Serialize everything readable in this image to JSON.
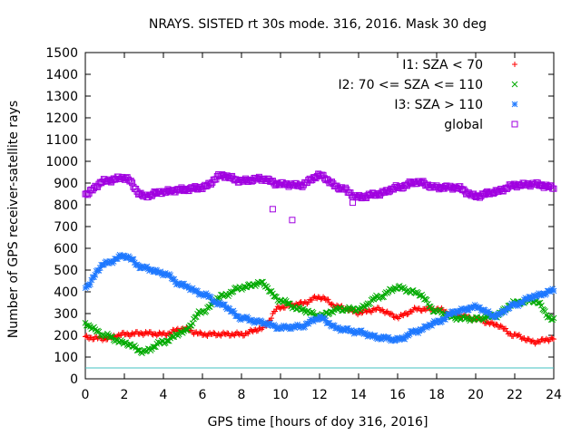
{
  "chart_data": {
    "type": "scatter",
    "title": "NRAYS. SISTED rt 30s mode. 316, 2016. Mask 30 deg",
    "xlabel": "GPS time [hours of doy 316, 2016]",
    "ylabel": "Number of GPS receiver-satellite rays",
    "xlim": [
      0,
      24
    ],
    "ylim": [
      0,
      1500
    ],
    "xticks": [
      "0",
      "2",
      "4",
      "6",
      "8",
      "10",
      "12",
      "14",
      "16",
      "18",
      "20",
      "22",
      "24"
    ],
    "yticks": [
      "0",
      "100",
      "200",
      "300",
      "400",
      "500",
      "600",
      "700",
      "800",
      "900",
      "1000",
      "1100",
      "1200",
      "1300",
      "1400",
      "1500"
    ],
    "legend_position": "top-right",
    "series": [
      {
        "name": "I1: SZA < 70",
        "color": "#ff0000",
        "marker": "plus",
        "points": [
          [
            0,
            190
          ],
          [
            1,
            185
          ],
          [
            2,
            205
          ],
          [
            3,
            210
          ],
          [
            4,
            205
          ],
          [
            5,
            230
          ],
          [
            6,
            205
          ],
          [
            7,
            205
          ],
          [
            8,
            205
          ],
          [
            9,
            230
          ],
          [
            10,
            330
          ],
          [
            11,
            345
          ],
          [
            12,
            375
          ],
          [
            13,
            330
          ],
          [
            14,
            305
          ],
          [
            15,
            320
          ],
          [
            16,
            285
          ],
          [
            17,
            320
          ],
          [
            18,
            320
          ],
          [
            19,
            295
          ],
          [
            20,
            275
          ],
          [
            21,
            250
          ],
          [
            22,
            200
          ],
          [
            23,
            170
          ],
          [
            24,
            185
          ]
        ]
      },
      {
        "name": "I2: 70 <= SZA <= 110",
        "color": "#00aa00",
        "marker": "cross",
        "points": [
          [
            0,
            250
          ],
          [
            1,
            200
          ],
          [
            2,
            165
          ],
          [
            3,
            125
          ],
          [
            4,
            170
          ],
          [
            5,
            215
          ],
          [
            6,
            310
          ],
          [
            7,
            380
          ],
          [
            8,
            420
          ],
          [
            9,
            440
          ],
          [
            10,
            360
          ],
          [
            11,
            320
          ],
          [
            12,
            290
          ],
          [
            13,
            320
          ],
          [
            14,
            320
          ],
          [
            15,
            375
          ],
          [
            16,
            420
          ],
          [
            17,
            395
          ],
          [
            18,
            310
          ],
          [
            19,
            280
          ],
          [
            20,
            275
          ],
          [
            21,
            290
          ],
          [
            22,
            350
          ],
          [
            23,
            360
          ],
          [
            24,
            270
          ]
        ]
      },
      {
        "name": "I3: SZA > 110",
        "color": "#1e78ff",
        "marker": "star",
        "points": [
          [
            0,
            425
          ],
          [
            1,
            530
          ],
          [
            2,
            565
          ],
          [
            3,
            510
          ],
          [
            4,
            485
          ],
          [
            5,
            430
          ],
          [
            6,
            390
          ],
          [
            7,
            340
          ],
          [
            8,
            280
          ],
          [
            9,
            260
          ],
          [
            10,
            235
          ],
          [
            11,
            240
          ],
          [
            12,
            280
          ],
          [
            13,
            230
          ],
          [
            14,
            215
          ],
          [
            15,
            190
          ],
          [
            16,
            180
          ],
          [
            17,
            220
          ],
          [
            18,
            260
          ],
          [
            19,
            310
          ],
          [
            20,
            330
          ],
          [
            21,
            290
          ],
          [
            22,
            340
          ],
          [
            23,
            380
          ],
          [
            24,
            405
          ]
        ]
      },
      {
        "name": "global",
        "color": "#a000e0",
        "marker": "square",
        "points": [
          [
            0,
            850
          ],
          [
            1,
            910
          ],
          [
            2,
            925
          ],
          [
            3,
            840
          ],
          [
            4,
            860
          ],
          [
            5,
            870
          ],
          [
            6,
            880
          ],
          [
            7,
            935
          ],
          [
            8,
            910
          ],
          [
            9,
            920
          ],
          [
            10,
            895
          ],
          [
            11,
            890
          ],
          [
            12,
            935
          ],
          [
            13,
            880
          ],
          [
            14,
            835
          ],
          [
            15,
            850
          ],
          [
            16,
            880
          ],
          [
            17,
            905
          ],
          [
            18,
            880
          ],
          [
            19,
            880
          ],
          [
            20,
            840
          ],
          [
            21,
            860
          ],
          [
            22,
            890
          ],
          [
            23,
            895
          ],
          [
            24,
            880
          ]
        ],
        "outliers": [
          [
            9.6,
            780
          ],
          [
            10.6,
            730
          ],
          [
            13.7,
            810
          ],
          [
            23.4,
            890
          ]
        ]
      }
    ],
    "reference_line": {
      "value": 50,
      "color": "#40c0c0"
    }
  }
}
